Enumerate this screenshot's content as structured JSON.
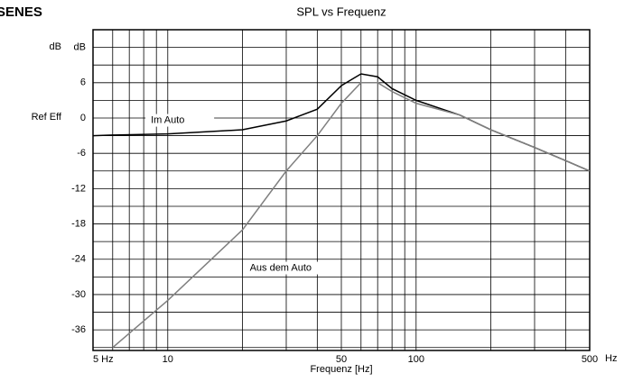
{
  "chart_data": {
    "type": "line",
    "title": "SPL vs Frequenz",
    "brand": "SENES",
    "xlabel": "Frequenz [Hz]",
    "xunit": "Hz",
    "ylabel": "dB",
    "ref_label": "Ref Eff",
    "log_x": true,
    "grid": true,
    "xlim": [
      5,
      500
    ],
    "xticks": [
      {
        "value": 5,
        "label": "5 Hz"
      },
      10,
      50,
      100,
      500
    ],
    "xminor": [
      6,
      7,
      8,
      9,
      20,
      30,
      40,
      60,
      70,
      80,
      90,
      200,
      300,
      400
    ],
    "ylim": [
      -39.5,
      15
    ],
    "yticks": [
      -36,
      -30,
      -24,
      -18,
      -12,
      -6,
      0,
      6,
      {
        "value": 12,
        "label": "dB"
      }
    ],
    "yminor": [
      -39,
      -33,
      -27,
      -21,
      -15,
      -9,
      -3,
      3,
      9
    ],
    "x": [
      5,
      6,
      10,
      20,
      30,
      40,
      50,
      60,
      70,
      80,
      100,
      150,
      200,
      300,
      500
    ],
    "series": [
      {
        "name": "Im Auto",
        "color": "#000000",
        "values": [
          -3,
          -2.9,
          -2.7,
          -2,
          -0.5,
          1.5,
          5.5,
          7.5,
          7,
          5,
          3,
          0.5,
          -2,
          -5,
          -9
        ]
      },
      {
        "name": "Aus dem Auto",
        "color": "#808080",
        "values": [
          null,
          -39,
          -31,
          -19,
          -9,
          -3,
          2.5,
          6,
          6,
          4.5,
          2.5,
          0.5,
          -2,
          -5,
          -9
        ]
      }
    ]
  }
}
